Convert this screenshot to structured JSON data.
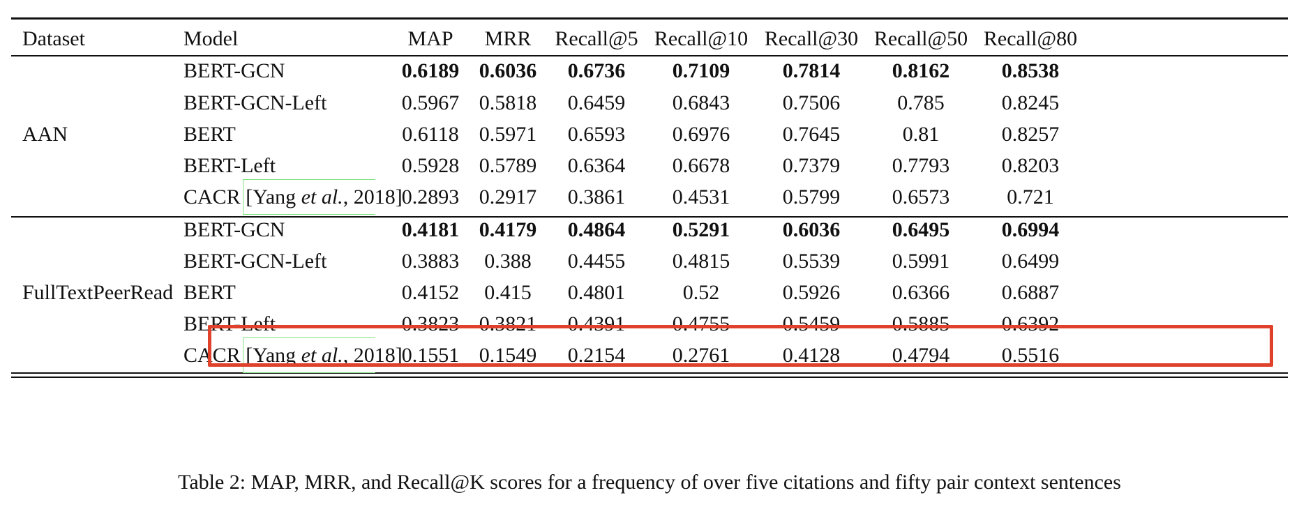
{
  "columns": [
    "Dataset",
    "Model",
    "MAP",
    "MRR",
    "Recall@5",
    "Recall@10",
    "Recall@30",
    "Recall@50",
    "Recall@80"
  ],
  "groups": [
    {
      "dataset": "AAN",
      "rows": [
        {
          "model": "BERT-GCN",
          "values": [
            "0.6189",
            "0.6036",
            "0.6736",
            "0.7109",
            "0.7814",
            "0.8162",
            "0.8538"
          ],
          "bold": true
        },
        {
          "model": "BERT-GCN-Left",
          "values": [
            "0.5967",
            "0.5818",
            "0.6459",
            "0.6843",
            "0.7506",
            "0.785",
            "0.8245"
          ]
        },
        {
          "model": "BERT",
          "values": [
            "0.6118",
            "0.5971",
            "0.6593",
            "0.6976",
            "0.7645",
            "0.81",
            "0.8257"
          ]
        },
        {
          "model": "BERT-Left",
          "values": [
            "0.5928",
            "0.5789",
            "0.6364",
            "0.6678",
            "0.7379",
            "0.7793",
            "0.8203"
          ]
        },
        {
          "model": "CACR",
          "cite": {
            "author": "Yang",
            "etal": "et al.",
            "year": ", 2018"
          },
          "values": [
            "0.2893",
            "0.2917",
            "0.3861",
            "0.4531",
            "0.5799",
            "0.6573",
            "0.721"
          ]
        }
      ]
    },
    {
      "dataset": "FullTextPeerRead",
      "rows": [
        {
          "model": "BERT-GCN",
          "values": [
            "0.4181",
            "0.4179",
            "0.4864",
            "0.5291",
            "0.6036",
            "0.6495",
            "0.6994"
          ],
          "bold": true
        },
        {
          "model": "BERT-GCN-Left",
          "values": [
            "0.3883",
            "0.388",
            "0.4455",
            "0.4815",
            "0.5539",
            "0.5991",
            "0.6499"
          ]
        },
        {
          "model": "BERT",
          "values": [
            "0.4152",
            "0.415",
            "0.4801",
            "0.52",
            "0.5926",
            "0.6366",
            "0.6887"
          ],
          "highlighted": true
        },
        {
          "model": "BERT-Left",
          "values": [
            "0.3823",
            "0.3821",
            "0.4391",
            "0.4755",
            "0.5459",
            "0.5885",
            "0.6392"
          ]
        },
        {
          "model": "CACR",
          "cite": {
            "author": "Yang",
            "etal": "et al.",
            "year": ", 2018"
          },
          "values": [
            "0.1551",
            "0.1549",
            "0.2154",
            "0.2761",
            "0.4128",
            "0.4794",
            "0.5516"
          ]
        }
      ]
    }
  ],
  "highlight_color": "#e0412a",
  "caption": "Table 2: MAP, MRR, and Recall@K scores for a frequency of over five citations and fifty pair context sentences"
}
